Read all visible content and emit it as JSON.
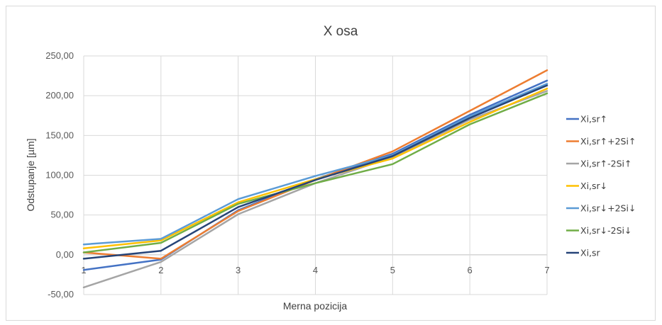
{
  "chart_data": {
    "type": "line",
    "title": "X osa",
    "xlabel": "Merna pozicija",
    "ylabel": "Odstupanje [µm]",
    "categories": [
      "1",
      "2",
      "3",
      "4",
      "5",
      "6",
      "7"
    ],
    "ylim": [
      -50,
      250
    ],
    "yticks": [
      "-50,00",
      "0,00",
      "50,00",
      "100,00",
      "150,00",
      "200,00",
      "250,00"
    ],
    "grid": true,
    "legend_position": "right",
    "series": [
      {
        "name": "Xi,sr↑",
        "color": "#4472c4",
        "values": [
          -19,
          -6,
          56,
          95,
          127,
          176,
          219
        ]
      },
      {
        "name": "Xi,sr↑+2Si↑",
        "color": "#ed7d31",
        "values": [
          3,
          -5,
          55,
          94,
          130,
          181,
          232
        ]
      },
      {
        "name": "Xi,sr↑-2Si↑",
        "color": "#a5a5a5",
        "values": [
          -41,
          -9,
          51,
          90,
          123,
          170,
          206
        ]
      },
      {
        "name": "Xi,sr↓",
        "color": "#ffc000",
        "values": [
          8,
          18,
          66,
          95,
          121,
          167,
          209
        ]
      },
      {
        "name": "Xi,sr↓+2Si↓",
        "color": "#5b9bd5",
        "values": [
          13,
          20,
          70,
          99,
          125,
          174,
          215
        ]
      },
      {
        "name": "Xi,sr↓-2Si↓",
        "color": "#70ad47",
        "values": [
          3,
          15,
          64,
          90,
          114,
          164,
          203
        ]
      },
      {
        "name": "Xi,sr",
        "color": "#264478",
        "values": [
          -5,
          5,
          60,
          94,
          124,
          172,
          213
        ]
      }
    ]
  }
}
